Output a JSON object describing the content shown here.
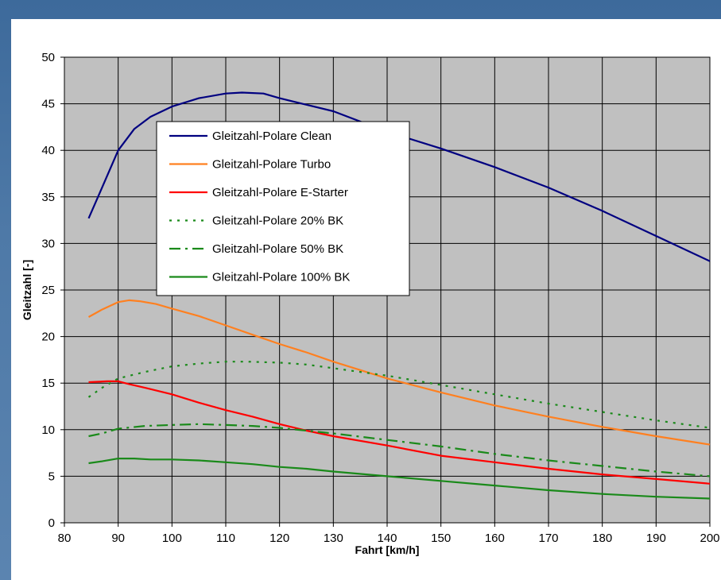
{
  "colors": {
    "plot_background": "#c0c0c0",
    "grid": "#000000",
    "series_clean": "#000080",
    "series_turbo": "#ff8020",
    "series_estarter": "#ff0000",
    "series_green": "#1a8a1a"
  },
  "chart_data": {
    "type": "line",
    "title": "",
    "xlabel": "Fahrt [km/h]",
    "ylabel": "Gleitzahl [-]",
    "xlim": [
      80,
      200
    ],
    "ylim": [
      0,
      50
    ],
    "xticks": [
      "80",
      "90",
      "100",
      "110",
      "120",
      "130",
      "140",
      "150",
      "160",
      "170",
      "180",
      "190",
      "200"
    ],
    "yticks": [
      "0",
      "5",
      "10",
      "15",
      "20",
      "25",
      "30",
      "35",
      "40",
      "45",
      "50"
    ],
    "grid": true,
    "legend_position": "top-left",
    "series": [
      {
        "name": "Gleitzahl-Polare Clean",
        "color": "#000080",
        "dash": "solid",
        "x": [
          84.5,
          87,
          90,
          93,
          96,
          100,
          105,
          110,
          113,
          117,
          120,
          125,
          130,
          140,
          150,
          160,
          170,
          180,
          190,
          200
        ],
        "y": [
          32.7,
          36,
          40,
          42.3,
          43.6,
          44.7,
          45.6,
          46.1,
          46.2,
          46.1,
          45.6,
          44.9,
          44.2,
          42,
          40.2,
          38.2,
          36,
          33.5,
          30.8,
          28.1
        ]
      },
      {
        "name": "Gleitzahl-Polare Turbo",
        "color": "#ff8020",
        "dash": "solid",
        "x": [
          84.5,
          87,
          90,
          92,
          94,
          97,
          100,
          105,
          110,
          115,
          120,
          125,
          130,
          140,
          150,
          160,
          170,
          180,
          190,
          200
        ],
        "y": [
          22.1,
          22.9,
          23.7,
          23.9,
          23.8,
          23.5,
          23,
          22.2,
          21.2,
          20.2,
          19.2,
          18.3,
          17.3,
          15.5,
          14,
          12.6,
          11.4,
          10.3,
          9.3,
          8.4
        ]
      },
      {
        "name": "Gleitzahl-Polare E-Starter",
        "color": "#ff0000",
        "dash": "solid",
        "x": [
          84.5,
          88,
          90,
          92,
          95,
          100,
          105,
          110,
          115,
          120,
          125,
          130,
          140,
          150,
          160,
          170,
          180,
          190,
          200
        ],
        "y": [
          15.1,
          15.2,
          15.2,
          14.9,
          14.5,
          13.8,
          12.9,
          12.1,
          11.4,
          10.6,
          9.9,
          9.3,
          8.3,
          7.2,
          6.5,
          5.8,
          5.2,
          4.7,
          4.2
        ]
      },
      {
        "name": "Gleitzahl-Polare 20% BK",
        "color": "#1a8a1a",
        "dash": "dotted",
        "x": [
          84.5,
          87,
          90,
          95,
          100,
          105,
          110,
          114,
          120,
          125,
          130,
          140,
          150,
          160,
          170,
          180,
          190,
          200
        ],
        "y": [
          13.5,
          14.5,
          15.5,
          16.2,
          16.8,
          17.1,
          17.3,
          17.3,
          17.2,
          17,
          16.6,
          15.8,
          14.8,
          13.8,
          12.8,
          11.9,
          11,
          10.2
        ]
      },
      {
        "name": "Gleitzahl-Polare 50% BK",
        "color": "#1a8a1a",
        "dash": "dashdot",
        "x": [
          84.5,
          87,
          90,
          95,
          100,
          105,
          110,
          115,
          120,
          125,
          130,
          140,
          150,
          160,
          170,
          180,
          190,
          200
        ],
        "y": [
          9.3,
          9.6,
          10.1,
          10.4,
          10.5,
          10.6,
          10.5,
          10.4,
          10.2,
          9.9,
          9.6,
          8.9,
          8.2,
          7.4,
          6.7,
          6.1,
          5.5,
          5
        ]
      },
      {
        "name": "Gleitzahl-Polare 100% BK",
        "color": "#1a8a1a",
        "dash": "solid",
        "x": [
          84.5,
          87,
          90,
          93,
          96,
          100,
          105,
          110,
          115,
          120,
          125,
          130,
          140,
          150,
          160,
          170,
          180,
          190,
          200
        ],
        "y": [
          6.4,
          6.6,
          6.9,
          6.9,
          6.8,
          6.8,
          6.7,
          6.5,
          6.3,
          6,
          5.8,
          5.5,
          5,
          4.5,
          4,
          3.5,
          3.1,
          2.8,
          2.6
        ]
      }
    ]
  }
}
